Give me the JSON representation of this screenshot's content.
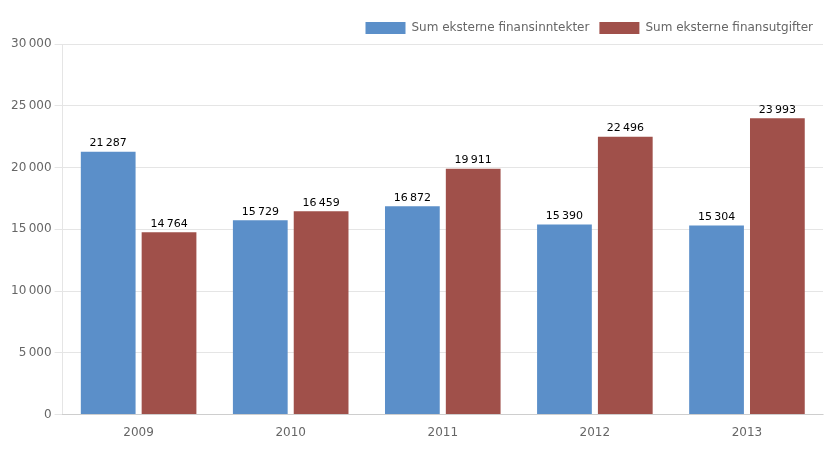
{
  "chart_data": {
    "type": "bar",
    "categories": [
      "2009",
      "2010",
      "2011",
      "2012",
      "2013"
    ],
    "series": [
      {
        "name": "Sum eksterne finansinntekter",
        "color": "#5B8FC9",
        "values": [
          21287,
          15729,
          16872,
          15390,
          15304
        ],
        "value_labels": [
          "21 287",
          "15 729",
          "16 872",
          "15 390",
          "15 304"
        ]
      },
      {
        "name": "Sum eksterne finansutgifter",
        "color": "#A0504A",
        "values": [
          14764,
          16459,
          19911,
          22496,
          23993
        ],
        "value_labels": [
          "14 764",
          "16 459",
          "19 911",
          "22 496",
          "23 993"
        ]
      }
    ],
    "ylim": [
      0,
      30000
    ],
    "yticks": [
      0,
      {
        "value": 5000,
        "label": "5 000"
      },
      {
        "value": 10000,
        "label": "10 000"
      },
      {
        "value": 15000,
        "label": "15 000"
      },
      {
        "value": 20000,
        "label": "20 000"
      },
      {
        "value": 25000,
        "label": "25 000"
      },
      {
        "value": 30000,
        "label": "30 000"
      }
    ],
    "grid": true,
    "legend": "upper right",
    "data_labels": true
  }
}
